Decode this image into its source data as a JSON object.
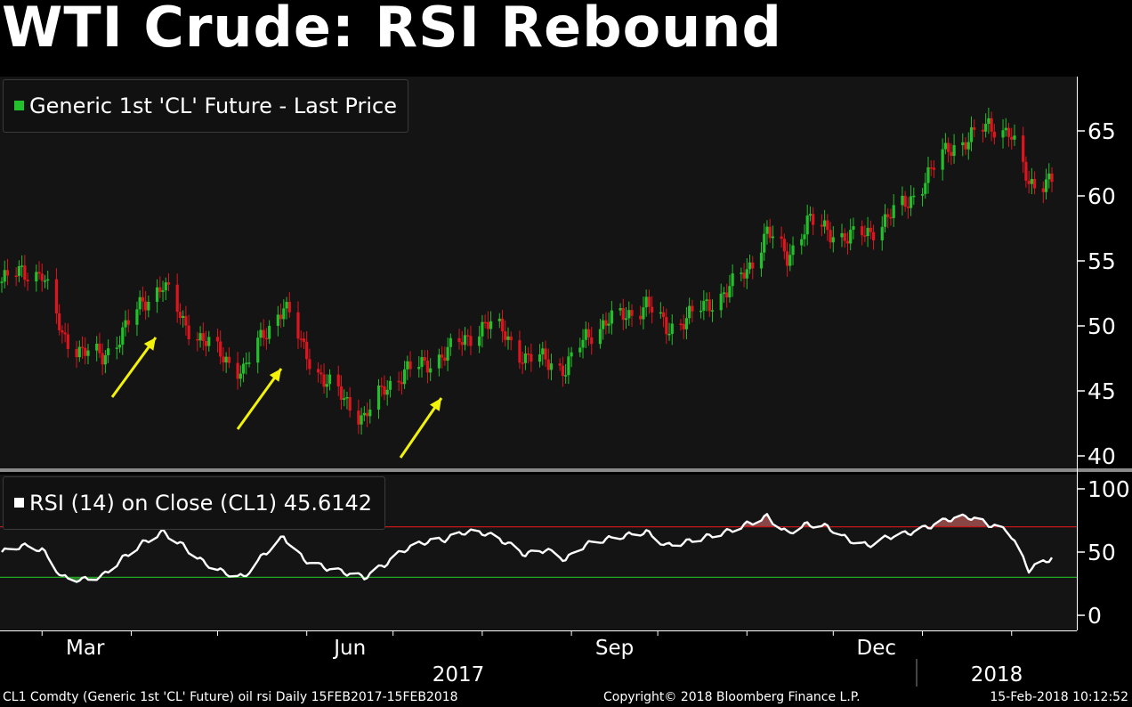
{
  "title": "WTI Crude: RSI Rebound",
  "legend_price": {
    "label": "Generic 1st 'CL' Future - Last Price",
    "color": "#22c02a"
  },
  "legend_rsi": {
    "label": "RSI (14) on Close (CL1) 45.6142",
    "color": "#ffffff"
  },
  "footer": {
    "left": "CL1 Comdty (Generic 1st 'CL' Future) oil rsi  Daily 15FEB2017-15FEB2018",
    "center": "Copyright© 2018 Bloomberg Finance L.P.",
    "right": "15-Feb-2018 10:12:52"
  },
  "x_axis": {
    "months": [
      "Mar",
      "Jun",
      "Sep",
      "Dec"
    ],
    "years": [
      "2017",
      "2018"
    ]
  },
  "chart_data": [
    {
      "type": "line",
      "series": [
        {
          "values_candles": true
        }
      ],
      "price_axis": {
        "ticks": [
          40,
          45,
          50,
          55,
          60,
          65
        ],
        "ylim": [
          39.5,
          69
        ]
      },
      "up_color": "#22c02a",
      "down_color": "#e0141e",
      "annotation_color": "#f2f20a",
      "x": [
        "2017-02-15",
        "2017-02-22",
        "2017-03-01",
        "2017-03-08",
        "2017-03-15",
        "2017-03-22",
        "2017-03-29",
        "2017-04-05",
        "2017-04-12",
        "2017-04-19",
        "2017-04-26",
        "2017-05-03",
        "2017-05-10",
        "2017-05-17",
        "2017-05-24",
        "2017-05-31",
        "2017-06-07",
        "2017-06-14",
        "2017-06-21",
        "2017-06-28",
        "2017-07-05",
        "2017-07-12",
        "2017-07-19",
        "2017-07-26",
        "2017-08-02",
        "2017-08-09",
        "2017-08-16",
        "2017-08-23",
        "2017-08-30",
        "2017-09-06",
        "2017-09-13",
        "2017-09-20",
        "2017-09-27",
        "2017-10-04",
        "2017-10-11",
        "2017-10-18",
        "2017-10-25",
        "2017-11-01",
        "2017-11-08",
        "2017-11-15",
        "2017-11-22",
        "2017-11-29",
        "2017-12-06",
        "2017-12-13",
        "2017-12-20",
        "2017-12-27",
        "2018-01-03",
        "2018-01-10",
        "2018-01-17",
        "2018-01-24",
        "2018-01-31",
        "2018-02-07",
        "2018-02-15"
      ],
      "close": [
        53.4,
        54.2,
        54.0,
        49.3,
        48.0,
        47.6,
        49.5,
        51.8,
        53.2,
        50.3,
        48.9,
        47.6,
        46.5,
        49.4,
        51.5,
        48.3,
        45.7,
        44.5,
        42.8,
        45.3,
        46.4,
        47.1,
        47.8,
        49.0,
        50.1,
        49.5,
        47.3,
        47.6,
        46.5,
        49.3,
        50.2,
        50.9,
        51.6,
        49.9,
        50.5,
        51.7,
        52.6,
        54.3,
        57.2,
        55.3,
        58.0,
        57.4,
        56.7,
        57.2,
        58.3,
        59.6,
        61.5,
        63.8,
        64.2,
        65.6,
        64.8,
        61.1,
        61.1
      ],
      "title": "WTI Crude: RSI Rebound"
    },
    {
      "type": "line",
      "series": [
        {
          "name": "RSI (14) on Close (CL1)"
        }
      ],
      "ylim": [
        0,
        100
      ],
      "yticks": [
        0,
        50,
        100
      ],
      "overbought": 70,
      "oversold": 30,
      "last_value": 45.6142,
      "x": [
        "2017-02-15",
        "2017-02-22",
        "2017-03-01",
        "2017-03-08",
        "2017-03-15",
        "2017-03-22",
        "2017-03-29",
        "2017-04-05",
        "2017-04-12",
        "2017-04-19",
        "2017-04-26",
        "2017-05-03",
        "2017-05-10",
        "2017-05-17",
        "2017-05-24",
        "2017-05-31",
        "2017-06-07",
        "2017-06-14",
        "2017-06-21",
        "2017-06-28",
        "2017-07-05",
        "2017-07-12",
        "2017-07-19",
        "2017-07-26",
        "2017-08-02",
        "2017-08-09",
        "2017-08-16",
        "2017-08-23",
        "2017-08-30",
        "2017-09-06",
        "2017-09-13",
        "2017-09-20",
        "2017-09-27",
        "2017-10-04",
        "2017-10-11",
        "2017-10-18",
        "2017-10-25",
        "2017-11-01",
        "2017-11-08",
        "2017-11-15",
        "2017-11-22",
        "2017-11-29",
        "2017-12-06",
        "2017-12-13",
        "2017-12-20",
        "2017-12-27",
        "2018-01-03",
        "2018-01-10",
        "2018-01-17",
        "2018-01-24",
        "2018-01-31",
        "2018-02-07",
        "2018-02-15"
      ],
      "values": [
        50,
        55,
        52,
        30,
        28,
        31,
        45,
        57,
        66,
        55,
        42,
        34,
        30,
        48,
        62,
        44,
        38,
        34,
        30,
        40,
        52,
        58,
        60,
        66,
        65,
        58,
        48,
        52,
        44,
        56,
        60,
        63,
        66,
        55,
        58,
        62,
        66,
        72,
        78,
        65,
        72,
        70,
        60,
        55,
        62,
        65,
        70,
        76,
        78,
        72,
        66,
        36,
        45.6
      ]
    }
  ]
}
